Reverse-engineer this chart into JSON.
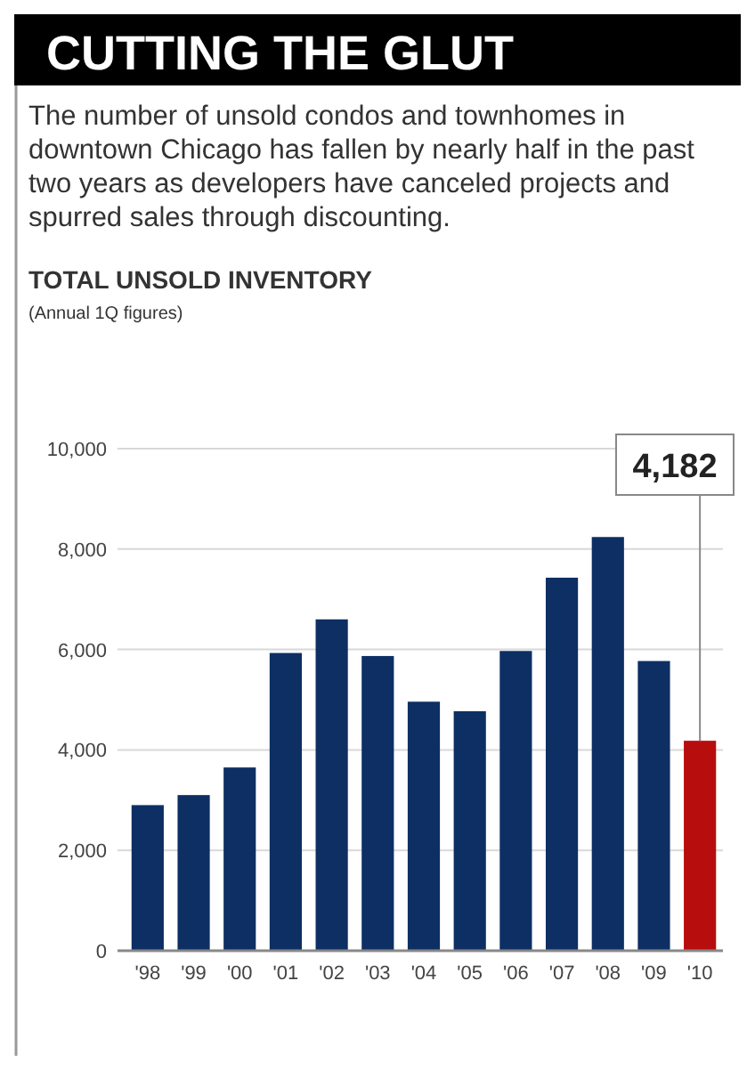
{
  "chart_data": {
    "type": "bar",
    "title": "CUTTING THE GLUT",
    "subtitle": "The number of unsold condos and townhomes in downtown Chicago has fallen by nearly half in the past two years as developers have canceled projects and spurred sales through discounting.",
    "annotations": [
      "TOTAL UNSOLD INVENTORY",
      "(Annual 1Q figures)"
    ],
    "categories": [
      "'98",
      "'99",
      "'00",
      "'01",
      "'02",
      "'03",
      "'04",
      "'05",
      "'06",
      "'07",
      "'08",
      "'09",
      "'10"
    ],
    "values": [
      2900,
      3100,
      3650,
      5930,
      6600,
      5870,
      4960,
      4770,
      5970,
      7430,
      8240,
      5770,
      4182
    ],
    "colors": [
      "#0d2f63",
      "#0d2f63",
      "#0d2f63",
      "#0d2f63",
      "#0d2f63",
      "#0d2f63",
      "#0d2f63",
      "#0d2f63",
      "#0d2f63",
      "#0d2f63",
      "#0d2f63",
      "#0d2f63",
      "#b80d0d"
    ],
    "value_labels": [
      null,
      null,
      null,
      null,
      null,
      null,
      null,
      null,
      null,
      null,
      null,
      null,
      "4,182"
    ],
    "ylim": [
      0,
      10000
    ],
    "yticks": [
      {
        "value": 0,
        "label": "0"
      },
      {
        "value": 2000,
        "label": "2,000"
      },
      {
        "value": 4000,
        "label": "4,000"
      },
      {
        "value": 6000,
        "label": "6,000"
      },
      {
        "value": 8000,
        "label": "8,000"
      },
      {
        "value": 10000,
        "label": "10,000"
      }
    ],
    "grid": "y"
  }
}
